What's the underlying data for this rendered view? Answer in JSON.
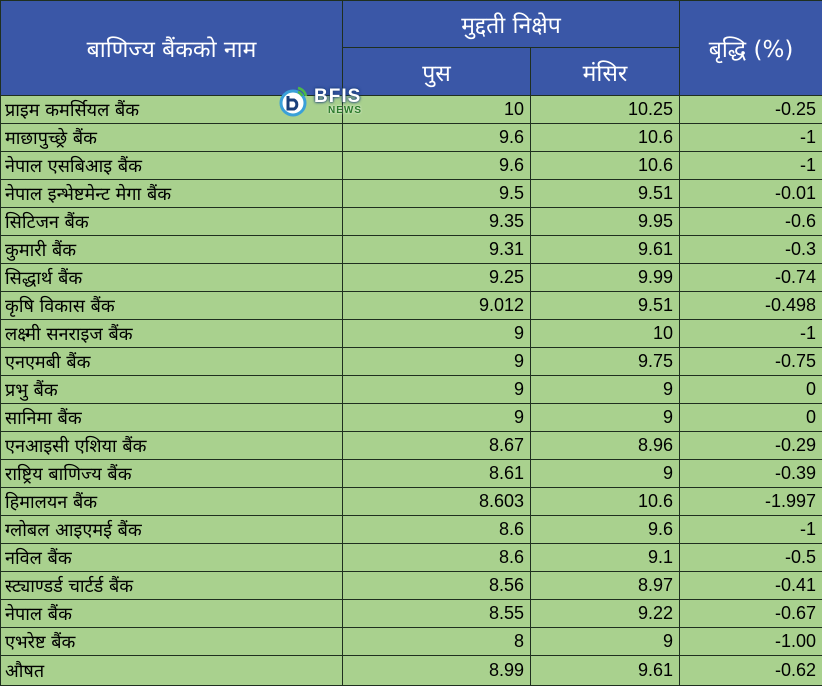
{
  "header": {
    "bank_name": "बाणिज्य बैंकको नाम",
    "deposit_group": "मुद्दती निक्षेप",
    "col_poush": "पुस",
    "col_mangsir": "मंसिर",
    "col_growth": "बृद्धि (%)"
  },
  "logo": {
    "text": "BFIS",
    "sub": "NEWS",
    "colors": {
      "ring": "#3aa0d8",
      "accent": "#4cb848"
    }
  },
  "rows": [
    {
      "name": "प्राइम कमर्सियल बैंक",
      "poush": "10",
      "mangsir": "10.25",
      "growth": "-0.25"
    },
    {
      "name": "माछापुच्छ्रे बैंक",
      "poush": "9.6",
      "mangsir": "10.6",
      "growth": "-1"
    },
    {
      "name": "नेपाल एसबिआइ बैंक",
      "poush": "9.6",
      "mangsir": "10.6",
      "growth": "-1"
    },
    {
      "name": "नेपाल इन्भेष्टमेन्ट मेगा बैंक",
      "poush": "9.5",
      "mangsir": "9.51",
      "growth": "-0.01"
    },
    {
      "name": "सिटिजन बैंक",
      "poush": "9.35",
      "mangsir": "9.95",
      "growth": "-0.6"
    },
    {
      "name": "कुमारी बैंक",
      "poush": "9.31",
      "mangsir": "9.61",
      "growth": "-0.3"
    },
    {
      "name": "सिद्धार्थ बैंक",
      "poush": "9.25",
      "mangsir": "9.99",
      "growth": "-0.74"
    },
    {
      "name": "कृषि विकास बैंक",
      "poush": "9.012",
      "mangsir": "9.51",
      "growth": "-0.498"
    },
    {
      "name": "लक्ष्मी सनराइज बैंक",
      "poush": "9",
      "mangsir": "10",
      "growth": "-1"
    },
    {
      "name": "एनएमबी बैंक",
      "poush": "9",
      "mangsir": "9.75",
      "growth": "-0.75"
    },
    {
      "name": "प्रभु बैंक",
      "poush": "9",
      "mangsir": "9",
      "growth": "0"
    },
    {
      "name": "सानिमा बैंक",
      "poush": "9",
      "mangsir": "9",
      "growth": "0"
    },
    {
      "name": "एनआइसी एशिया बैंक",
      "poush": "8.67",
      "mangsir": "8.96",
      "growth": "-0.29"
    },
    {
      "name": "राष्ट्रिय बाणिज्य बैंक",
      "poush": "8.61",
      "mangsir": "9",
      "growth": "-0.39"
    },
    {
      "name": "हिमालयन बैंक",
      "poush": "8.603",
      "mangsir": "10.6",
      "growth": "-1.997"
    },
    {
      "name": "ग्लोबल आइएमई बैंक",
      "poush": "8.6",
      "mangsir": "9.6",
      "growth": "-1"
    },
    {
      "name": "नविल बैंक",
      "poush": "8.6",
      "mangsir": "9.1",
      "growth": "-0.5"
    },
    {
      "name": "स्ट्याण्डर्ड चार्टर्ड बैंक",
      "poush": "8.56",
      "mangsir": "8.97",
      "growth": "-0.41"
    },
    {
      "name": "नेपाल बैंक",
      "poush": "8.55",
      "mangsir": "9.22",
      "growth": "-0.67"
    },
    {
      "name": "एभरेष्ट बैंक",
      "poush": "8",
      "mangsir": "9",
      "growth": "-1.00"
    }
  ],
  "average": {
    "name": "औषत",
    "poush": "8.99",
    "mangsir": "9.61",
    "growth": "-0.62"
  }
}
